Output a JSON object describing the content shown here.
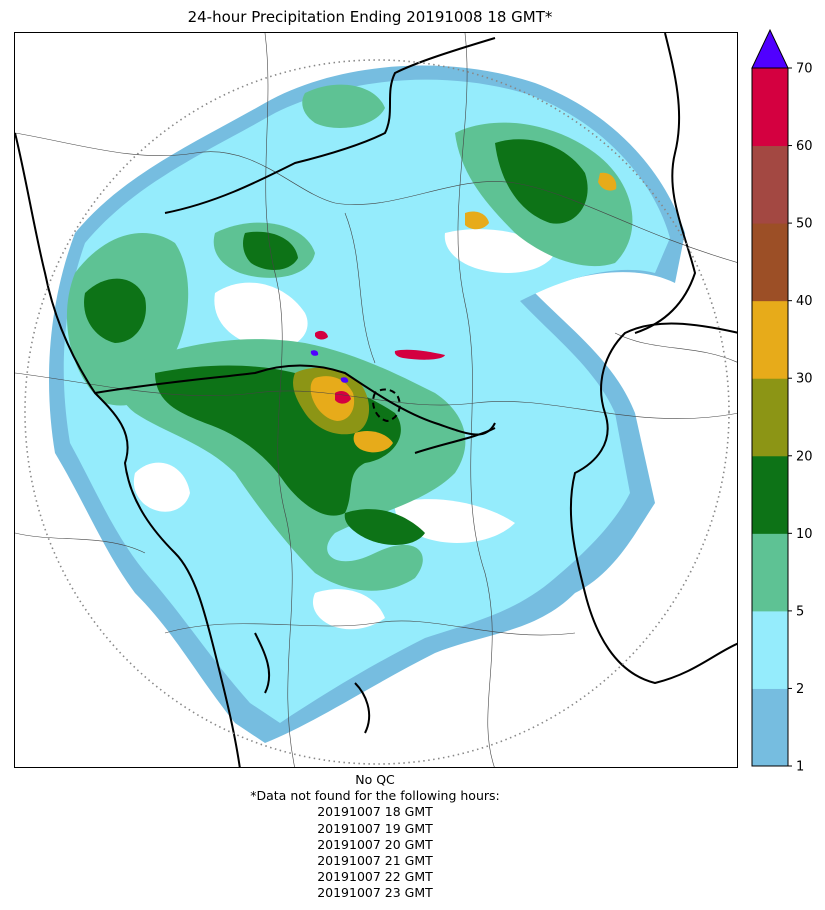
{
  "title": "24-hour Precipitation Ending 20191008 18 GMT*",
  "colorbar": {
    "ticks": [
      "1",
      "2",
      "5",
      "10",
      "20",
      "30",
      "40",
      "50",
      "60",
      "70"
    ],
    "colors": [
      "#76bde0",
      "#95ecfc",
      "#5ec294",
      "#0d7317",
      "#8c9515",
      "#e7ab1a",
      "#9c4f26",
      "#a34842",
      "#d40040"
    ],
    "extend_color": "#5000ff"
  },
  "footer": {
    "qc": "No QC",
    "missing_heading": "*Data not found for the following hours:",
    "missing_hours": [
      "20191007 18 GMT",
      "20191007 19 GMT",
      "20191007 20 GMT",
      "20191007 21 GMT",
      "20191007 22 GMT",
      "20191007 23 GMT"
    ]
  }
}
